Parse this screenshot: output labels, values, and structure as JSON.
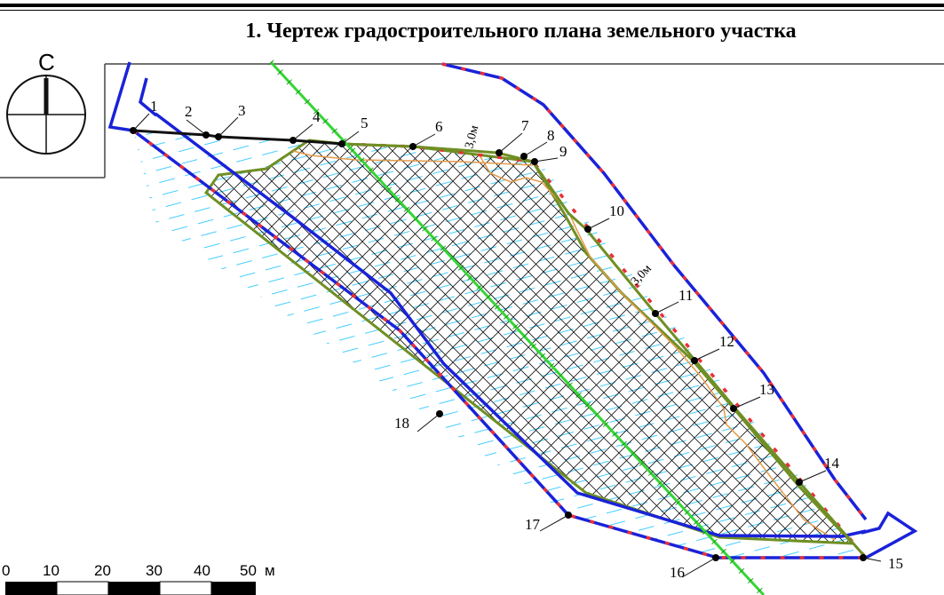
{
  "title": "1. Чертеж градостроительного плана земельного участка",
  "north_label": "С",
  "points": [
    {
      "id": "1"
    },
    {
      "id": "2"
    },
    {
      "id": "3"
    },
    {
      "id": "4"
    },
    {
      "id": "5"
    },
    {
      "id": "6"
    },
    {
      "id": "7"
    },
    {
      "id": "8"
    },
    {
      "id": "9"
    },
    {
      "id": "10"
    },
    {
      "id": "11"
    },
    {
      "id": "12"
    },
    {
      "id": "13"
    },
    {
      "id": "14"
    },
    {
      "id": "15"
    },
    {
      "id": "16"
    },
    {
      "id": "17"
    },
    {
      "id": "18"
    }
  ],
  "setback_labels": [
    "3,0м",
    "3,0м"
  ],
  "scale_bar": {
    "ticks": [
      "0",
      "10",
      "20",
      "30",
      "40",
      "50"
    ],
    "unit": "м"
  },
  "colors": {
    "boundary": "#1a22d8",
    "red_marks": "#e8303a",
    "building_zone": "#6f8f24",
    "setback": "#e59a4a",
    "hatch": "#111111",
    "water_hatch": "#2ec8ff",
    "utility_line": "#33d633"
  }
}
